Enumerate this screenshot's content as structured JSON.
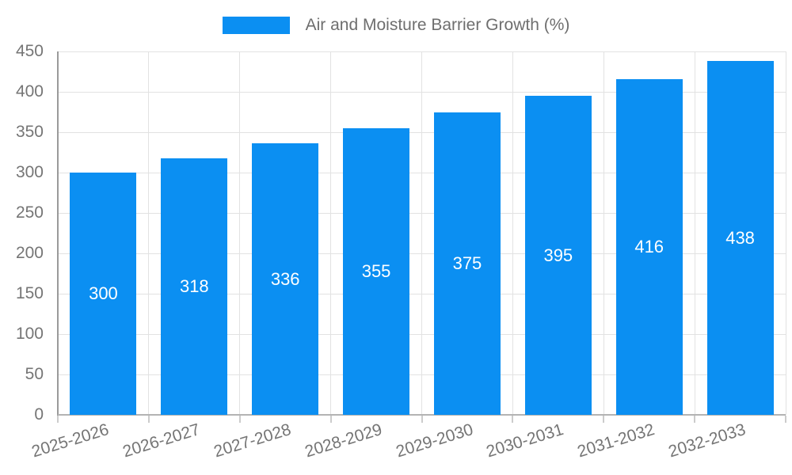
{
  "legend": {
    "label": "Air and Moisture Barrier Growth (%)",
    "swatch_color": "#0b8ff2"
  },
  "chart_data": {
    "type": "bar",
    "title": "Air and Moisture Barrier Growth (%)",
    "categories": [
      "2025-2026",
      "2026-2027",
      "2027-2028",
      "2028-2029",
      "2029-2030",
      "2030-2031",
      "2031-2032",
      "2032-2033"
    ],
    "values": [
      300,
      318,
      336,
      355,
      375,
      395,
      416,
      438
    ],
    "xlabel": "",
    "ylabel": "",
    "ylim": [
      0,
      450
    ],
    "ytick_step": 50,
    "yticks": [
      0,
      50,
      100,
      150,
      200,
      250,
      300,
      350,
      400,
      450
    ],
    "grid": true,
    "legend_position": "top-center",
    "bar_color": "#0b8ff2",
    "value_label_color": "#ffffff",
    "tick_label_color": "#757575",
    "x_label_rotation_deg": -17
  }
}
